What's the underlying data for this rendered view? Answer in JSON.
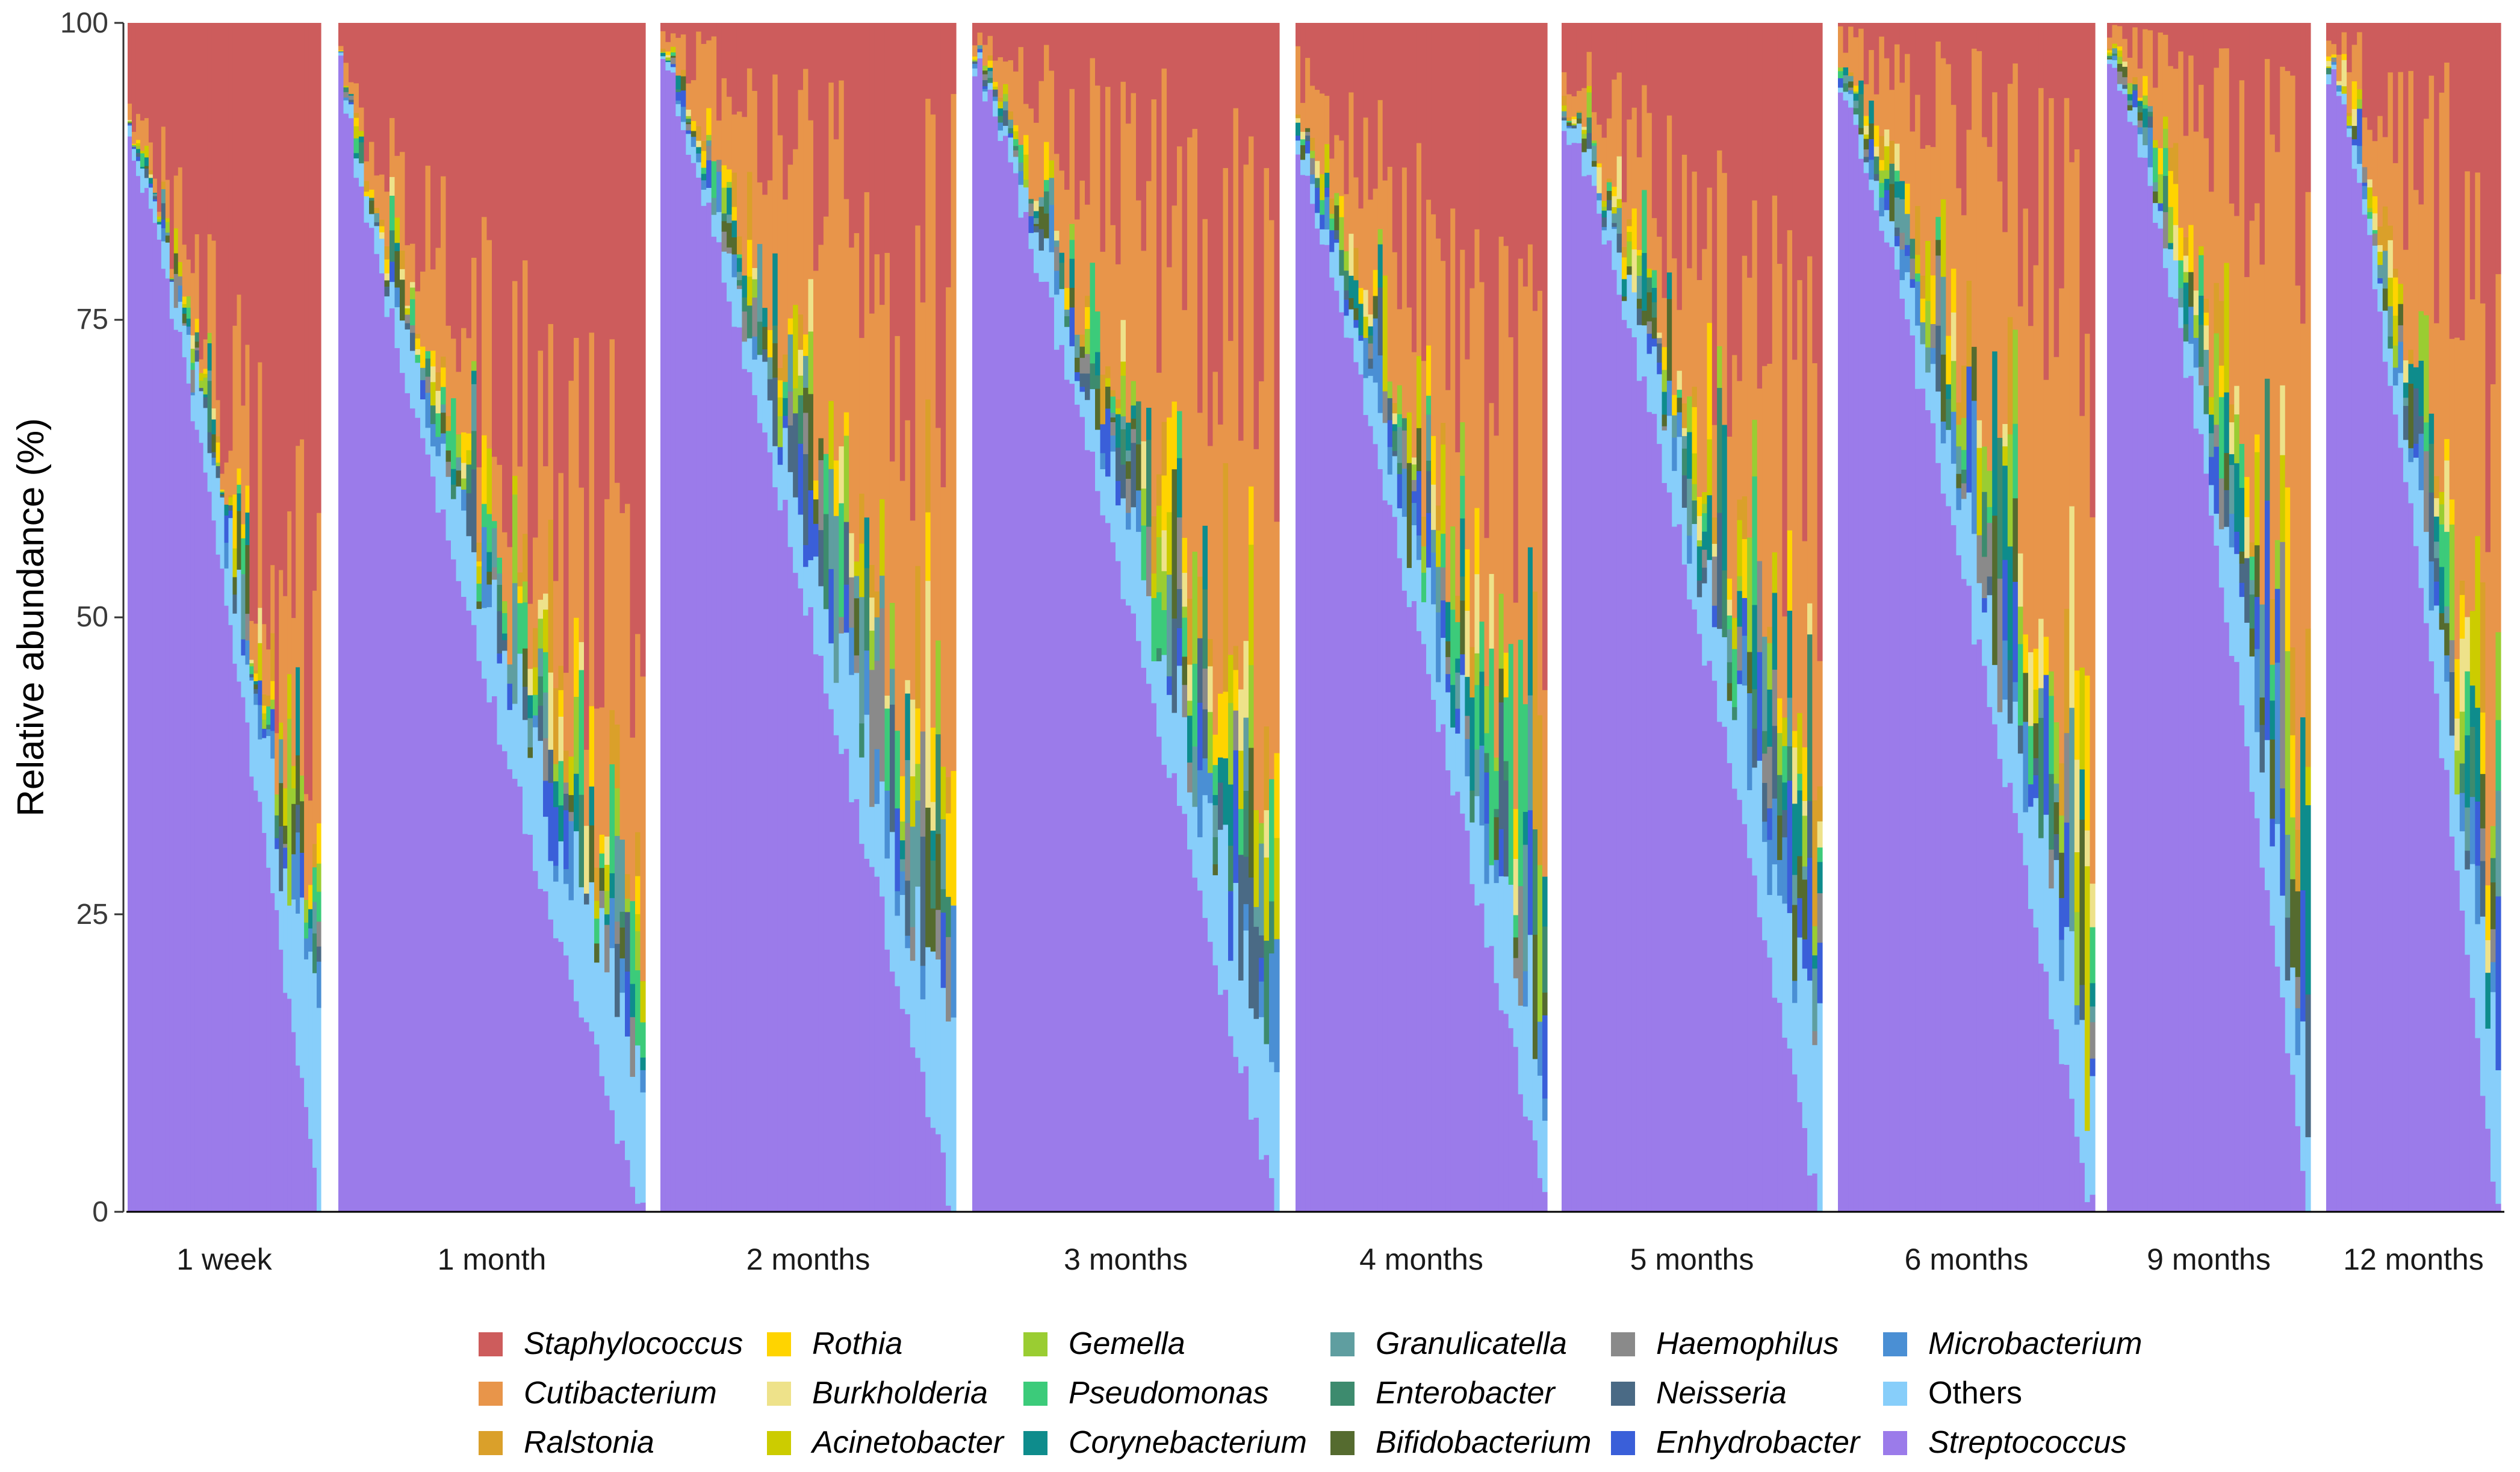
{
  "chart_data": {
    "type": "bar",
    "subtype": "stacked-100-percent, faceted by timepoint, one bar per sample",
    "ylabel": "Relative abundance (%)",
    "xlabel": "",
    "ylim": [
      0,
      100
    ],
    "yticks": [
      "0",
      "25",
      "50",
      "75",
      "100"
    ],
    "grid": false,
    "legend_position": "bottom",
    "stack_order_bottom_to_top": [
      "Streptococcus",
      "Others",
      "Microbacterium",
      "Enhydrobacter",
      "Neisseria",
      "Haemophilus",
      "Bifidobacterium",
      "Enterobacter",
      "Granulicatella",
      "Corynebacterium",
      "Pseudomonas",
      "Gemella",
      "Acinetobacter",
      "Burkholderia",
      "Rothia",
      "Ralstonia",
      "Cutibacterium",
      "Staphylococcus"
    ],
    "series": [
      {
        "name": "Staphylococcus",
        "color": "#CD5C5C",
        "italic": true
      },
      {
        "name": "Cutibacterium",
        "color": "#E8954A",
        "italic": true
      },
      {
        "name": "Ralstonia",
        "color": "#DAA02A",
        "italic": true
      },
      {
        "name": "Rothia",
        "color": "#FFD400",
        "italic": true
      },
      {
        "name": "Burkholderia",
        "color": "#EEE28A",
        "italic": true
      },
      {
        "name": "Acinetobacter",
        "color": "#CCCC00",
        "italic": true
      },
      {
        "name": "Gemella",
        "color": "#9ACD32",
        "italic": true
      },
      {
        "name": "Pseudomonas",
        "color": "#3CCB7A",
        "italic": true
      },
      {
        "name": "Corynebacterium",
        "color": "#0E8C8C",
        "italic": true
      },
      {
        "name": "Granulicatella",
        "color": "#5F9EA0",
        "italic": true
      },
      {
        "name": "Enterobacter",
        "color": "#3D8B6E",
        "italic": true
      },
      {
        "name": "Bifidobacterium",
        "color": "#556B2F",
        "italic": true
      },
      {
        "name": "Haemophilus",
        "color": "#8A8A8A",
        "italic": true
      },
      {
        "name": "Neisseria",
        "color": "#4A6A85",
        "italic": true
      },
      {
        "name": "Enhydrobacter",
        "color": "#3A5FD9",
        "italic": true
      },
      {
        "name": "Microbacterium",
        "color": "#4A8FD4",
        "italic": true
      },
      {
        "name": "Others",
        "color": "#87CEFA",
        "italic": false
      },
      {
        "name": "Streptococcus",
        "color": "#9B7BEA",
        "italic": true
      }
    ],
    "panels": [
      {
        "label": "1 week",
        "n_samples": 46,
        "strep_max": 90,
        "strep_min": 0,
        "curve": 1.25,
        "staph_share": 0.72
      },
      {
        "label": "1 month",
        "n_samples": 60,
        "strep_max": 96,
        "strep_min": 0,
        "curve": 0.85,
        "staph_share": 0.58
      },
      {
        "label": "2 months",
        "n_samples": 58,
        "strep_max": 98,
        "strep_min": 0,
        "curve": 1.05,
        "staph_share": 0.3
      },
      {
        "label": "3 months",
        "n_samples": 60,
        "strep_max": 97,
        "strep_min": 0,
        "curve": 1.1,
        "staph_share": 0.32
      },
      {
        "label": "4 months",
        "n_samples": 52,
        "strep_max": 90,
        "strep_min": 2,
        "curve": 1.05,
        "staph_share": 0.42
      },
      {
        "label": "5 months",
        "n_samples": 52,
        "strep_max": 92,
        "strep_min": 0,
        "curve": 1.2,
        "staph_share": 0.45
      },
      {
        "label": "6 months",
        "n_samples": 50,
        "strep_max": 95,
        "strep_min": 0,
        "curve": 1.15,
        "staph_share": 0.22
      },
      {
        "label": "9 months",
        "n_samples": 40,
        "strep_max": 97,
        "strep_min": 0,
        "curve": 1.4,
        "staph_share": 0.18
      },
      {
        "label": "12 months",
        "n_samples": 34,
        "strep_max": 96,
        "strep_min": 0,
        "curve": 1.3,
        "staph_share": 0.3
      }
    ]
  }
}
